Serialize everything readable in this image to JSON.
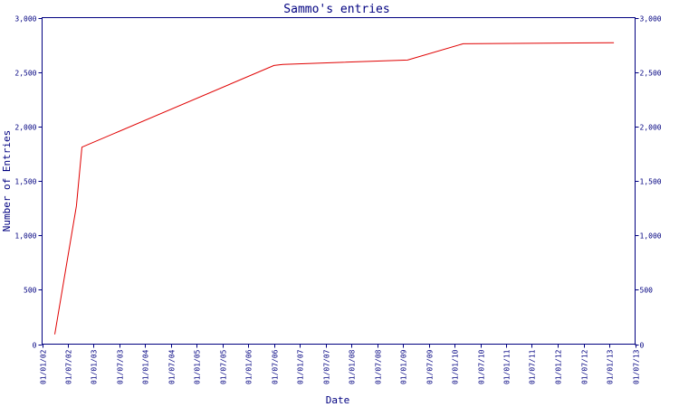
{
  "chart_data": {
    "type": "line",
    "title": "Sammo's entries",
    "xlabel": "Date",
    "ylabel": "Number of Entries",
    "ylim": [
      0,
      3000
    ],
    "y_ticks": [
      "0",
      "500",
      "1,000",
      "1,500",
      "2,000",
      "2,500",
      "3,000"
    ],
    "y_tick_values": [
      0,
      500,
      1000,
      1500,
      2000,
      2500,
      3000
    ],
    "right_axis": true,
    "grid": false,
    "x_ticks": [
      "01/01/02",
      "01/07/02",
      "01/01/03",
      "01/07/03",
      "01/01/04",
      "01/07/04",
      "01/01/05",
      "01/07/05",
      "01/01/06",
      "01/07/06",
      "01/01/07",
      "01/07/07",
      "01/01/08",
      "01/07/08",
      "01/01/09",
      "01/07/09",
      "01/01/10",
      "01/07/10",
      "01/01/11",
      "01/07/11",
      "01/01/12",
      "01/07/12",
      "01/01/13",
      "01/07/13"
    ],
    "x_tick_dates": [
      "2002-01-01",
      "2002-07-01",
      "2003-01-01",
      "2003-07-01",
      "2004-01-01",
      "2004-07-01",
      "2005-01-01",
      "2005-07-01",
      "2006-01-01",
      "2006-07-01",
      "2007-01-01",
      "2007-07-01",
      "2008-01-01",
      "2008-07-01",
      "2009-01-01",
      "2009-07-01",
      "2010-01-01",
      "2010-07-01",
      "2011-01-01",
      "2011-07-01",
      "2012-01-01",
      "2012-07-01",
      "2013-01-01",
      "2013-07-01"
    ],
    "xlim": [
      "2002-01-01",
      "2013-07-01"
    ],
    "series": [
      {
        "color": "#e00000",
        "points": [
          {
            "x": "2002-04-01",
            "y": 90
          },
          {
            "x": "2002-09-01",
            "y": 1270
          },
          {
            "x": "2002-10-10",
            "y": 1810
          },
          {
            "x": "2006-07-01",
            "y": 2560
          },
          {
            "x": "2006-09-01",
            "y": 2570
          },
          {
            "x": "2009-02-01",
            "y": 2610
          },
          {
            "x": "2010-03-01",
            "y": 2760
          },
          {
            "x": "2013-02-01",
            "y": 2770
          }
        ]
      }
    ]
  }
}
